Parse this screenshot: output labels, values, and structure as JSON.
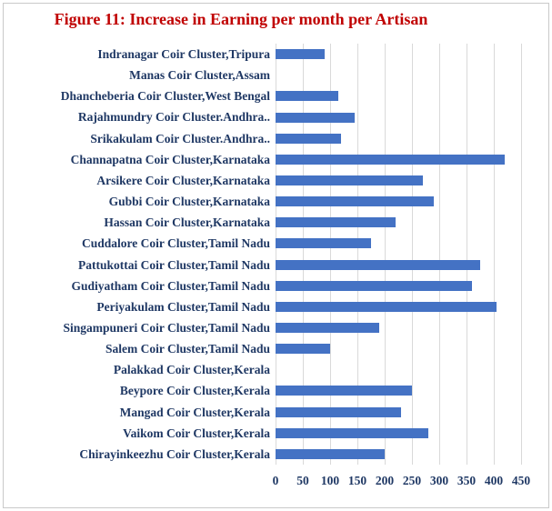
{
  "chart_data": {
    "type": "bar",
    "orientation": "horizontal",
    "title": "Figure 11: Increase in Earning per month per Artisan",
    "categories": [
      "Indranagar Coir Cluster,Tripura",
      "Manas Coir Cluster,Assam",
      "Dhancheberia Coir Cluster,West Bengal",
      "Rajahmundry Coir Cluster.Andhra..",
      "Srikakulam Coir Cluster.Andhra..",
      "Channapatna Coir Cluster,Karnataka",
      "Arsikere Coir Cluster,Karnataka",
      "Gubbi Coir Cluster,Karnataka",
      "Hassan Coir Cluster,Karnataka",
      "Cuddalore Coir Cluster,Tamil Nadu",
      "Pattukottai Coir Cluster,Tamil Nadu",
      "Gudiyatham Coir Cluster,Tamil Nadu",
      "Periyakulam Cluster,Tamil Nadu",
      "Singampuneri Coir Cluster,Tamil Nadu",
      "Salem Coir Cluster,Tamil Nadu",
      "Palakkad Coir Cluster,Kerala",
      "Beypore Coir Cluster,Kerala",
      "Mangad Coir Cluster,Kerala",
      "Vaikom Coir Cluster,Kerala",
      "Chirayinkeezhu Coir Cluster,Kerala"
    ],
    "values": [
      90,
      0,
      115,
      145,
      120,
      420,
      270,
      290,
      220,
      175,
      375,
      360,
      405,
      190,
      100,
      0,
      250,
      230,
      280,
      200
    ],
    "xlabel": "",
    "ylabel": "",
    "xlim": [
      0,
      450
    ],
    "x_ticks": [
      0,
      50,
      100,
      150,
      200,
      250,
      300,
      350,
      400,
      450
    ],
    "grid": true,
    "legend": false,
    "colors": {
      "bar": "#4472C4",
      "title": "#C00000",
      "category_label": "#1F3864",
      "tick_label": "#1F3864",
      "gridline": "#D9D9D9",
      "border": "#C9C9C9"
    }
  }
}
